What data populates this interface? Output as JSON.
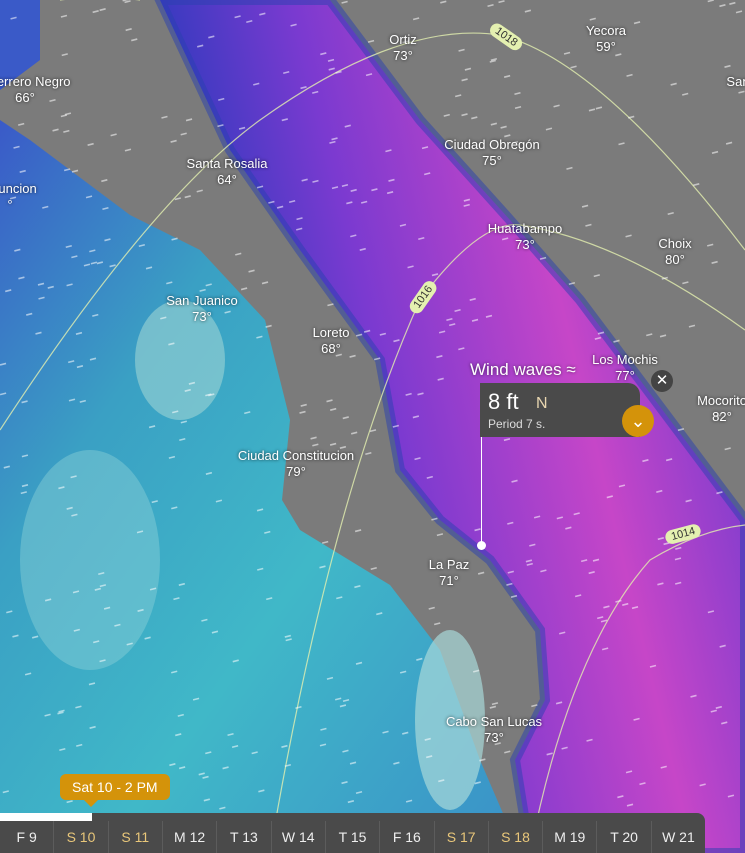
{
  "layer": {
    "name": "Wind waves",
    "icon": "wind-waves-icon"
  },
  "popup": {
    "value": "8 ft",
    "direction": "N",
    "period": "Period 7 s."
  },
  "cities": [
    {
      "name": "Guerrero Negro",
      "temp": "66°"
    },
    {
      "name": "Ortiz",
      "temp": "73°"
    },
    {
      "name": "Yecora",
      "temp": "59°"
    },
    {
      "name": "San",
      "temp": ""
    },
    {
      "name": "Asuncion",
      "temp": "°"
    },
    {
      "name": "Santa Rosalia",
      "temp": "64°"
    },
    {
      "name": "Ciudad Obregón",
      "temp": "75°"
    },
    {
      "name": "Huatabampo",
      "temp": "73°"
    },
    {
      "name": "Choix",
      "temp": "80°"
    },
    {
      "name": "San Juanico",
      "temp": "73°"
    },
    {
      "name": "Loreto",
      "temp": "68°"
    },
    {
      "name": "Los Mochis",
      "temp": "77°"
    },
    {
      "name": "Mocorito",
      "temp": "82°"
    },
    {
      "name": "Ciudad Constitucion",
      "temp": "79°"
    },
    {
      "name": "La Paz",
      "temp": "71°"
    },
    {
      "name": "Cabo San Lucas",
      "temp": "73°"
    }
  ],
  "isobars": [
    "1018",
    "1016",
    "1014"
  ],
  "timeline": {
    "current": "Sat 10 - 2 PM",
    "progress_percent": 13,
    "days": [
      {
        "label": "F 9",
        "weekend": false
      },
      {
        "label": "S 10",
        "weekend": true
      },
      {
        "label": "S 11",
        "weekend": true
      },
      {
        "label": "M 12",
        "weekend": false
      },
      {
        "label": "T 13",
        "weekend": false
      },
      {
        "label": "W 14",
        "weekend": false
      },
      {
        "label": "T 15",
        "weekend": false
      },
      {
        "label": "F 16",
        "weekend": false
      },
      {
        "label": "S 17",
        "weekend": true
      },
      {
        "label": "S 18",
        "weekend": true
      },
      {
        "label": "M 19",
        "weekend": false
      },
      {
        "label": "T 20",
        "weekend": false
      },
      {
        "label": "W 21",
        "weekend": false
      }
    ]
  },
  "colors": {
    "accent": "#d4930a",
    "land": "#7b7b7b",
    "gulf_peak": "#c040c8",
    "pacific": "#3aa8c0"
  }
}
